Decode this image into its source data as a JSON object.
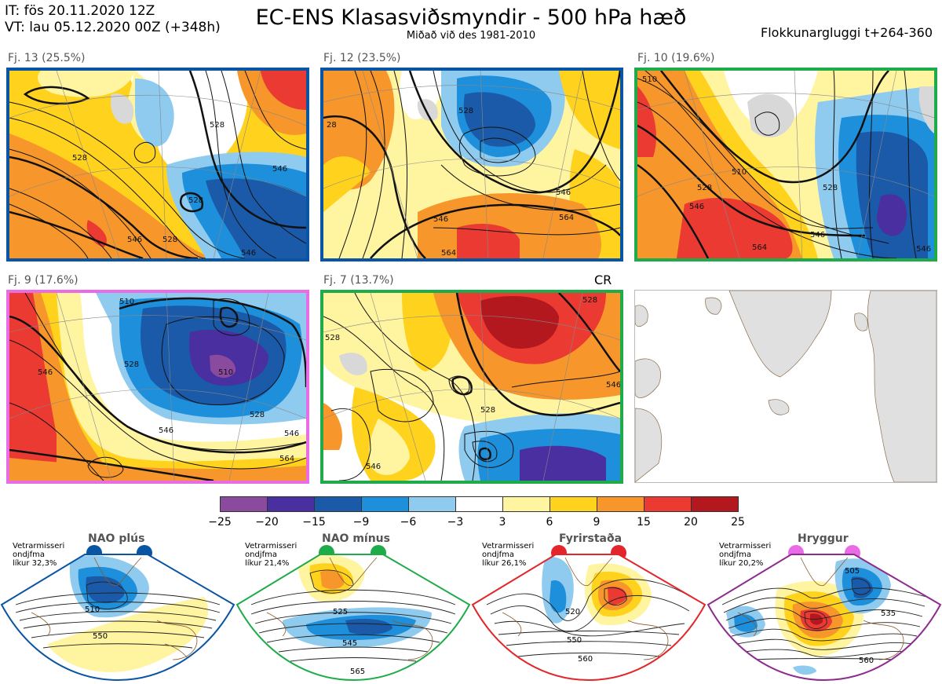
{
  "header": {
    "it_line": "IT: fös 20.11.2020 12Z",
    "vt_line": "VT: lau 05.12.2020 00Z  (+348h)",
    "title": "EC-ENS Klasasviðsmyndir - 500 hPa hæð",
    "subtitle": "Miðað við des 1981-2010",
    "window": "Flokkunargluggi t+264-360"
  },
  "panels": [
    {
      "label": "Fj. 13 (25.5%)",
      "border": "#0a55a3",
      "contours": [
        "528",
        "528",
        "546",
        "528",
        "546",
        "528",
        "546"
      ]
    },
    {
      "label": "Fj. 12 (23.5%)",
      "border": "#0a55a3",
      "contours": [
        "528",
        "28",
        "546",
        "546",
        "564",
        "564"
      ]
    },
    {
      "label": "Fj. 10 (19.6%)",
      "border": "#1fab4a",
      "contours": [
        "510",
        "528",
        "546",
        "564",
        "546",
        "528",
        "546",
        "510"
      ]
    },
    {
      "label": "Fj. 9 (17.6%)",
      "border": "#e96ce6",
      "contours": [
        "510",
        "528",
        "546",
        "528",
        "546",
        "564",
        "546",
        "510"
      ]
    },
    {
      "label": "Fj. 7 (13.7%)",
      "border": "#1fab4a",
      "contours": [
        "528",
        "528",
        "546",
        "546",
        "528"
      ],
      "extra": "CR"
    }
  ],
  "colorbar": {
    "colors": [
      "#8a4a9e",
      "#4a2fa0",
      "#1a5aa8",
      "#1e8fda",
      "#8fcbef",
      "#ffffff",
      "#fff4a0",
      "#ffd21e",
      "#f7962a",
      "#ea3a32",
      "#b2181e"
    ],
    "ticks": [
      "−25",
      "−20",
      "−15",
      "−9",
      "−6",
      "−3",
      "3",
      "6",
      "9",
      "15",
      "20",
      "25"
    ]
  },
  "regimes": [
    {
      "title": "NAO plús",
      "note": [
        "Vetrarmisseri",
        "ondjfma",
        "líkur 32,3%"
      ],
      "color": "#0a55a3",
      "labels": [
        "510",
        "550"
      ]
    },
    {
      "title": "NAO mínus",
      "note": [
        "Vetrarmisseri",
        "ondjfma",
        "líkur 21,4%"
      ],
      "color": "#1fab4a",
      "labels": [
        "525",
        "545",
        "565"
      ]
    },
    {
      "title": "Fyrirstaða",
      "note": [
        "Vetrarmisseri",
        "ondjfma",
        "líkur 26,1%"
      ],
      "color": "#e2262b",
      "labels": [
        "520",
        "550",
        "560"
      ]
    },
    {
      "title": "Hryggur",
      "note": [
        "Vetrarmisseri",
        "ondjfma",
        "líkur 20,2%"
      ],
      "color": "#e96ce6",
      "labels": [
        "505",
        "535",
        "560"
      ]
    }
  ]
}
